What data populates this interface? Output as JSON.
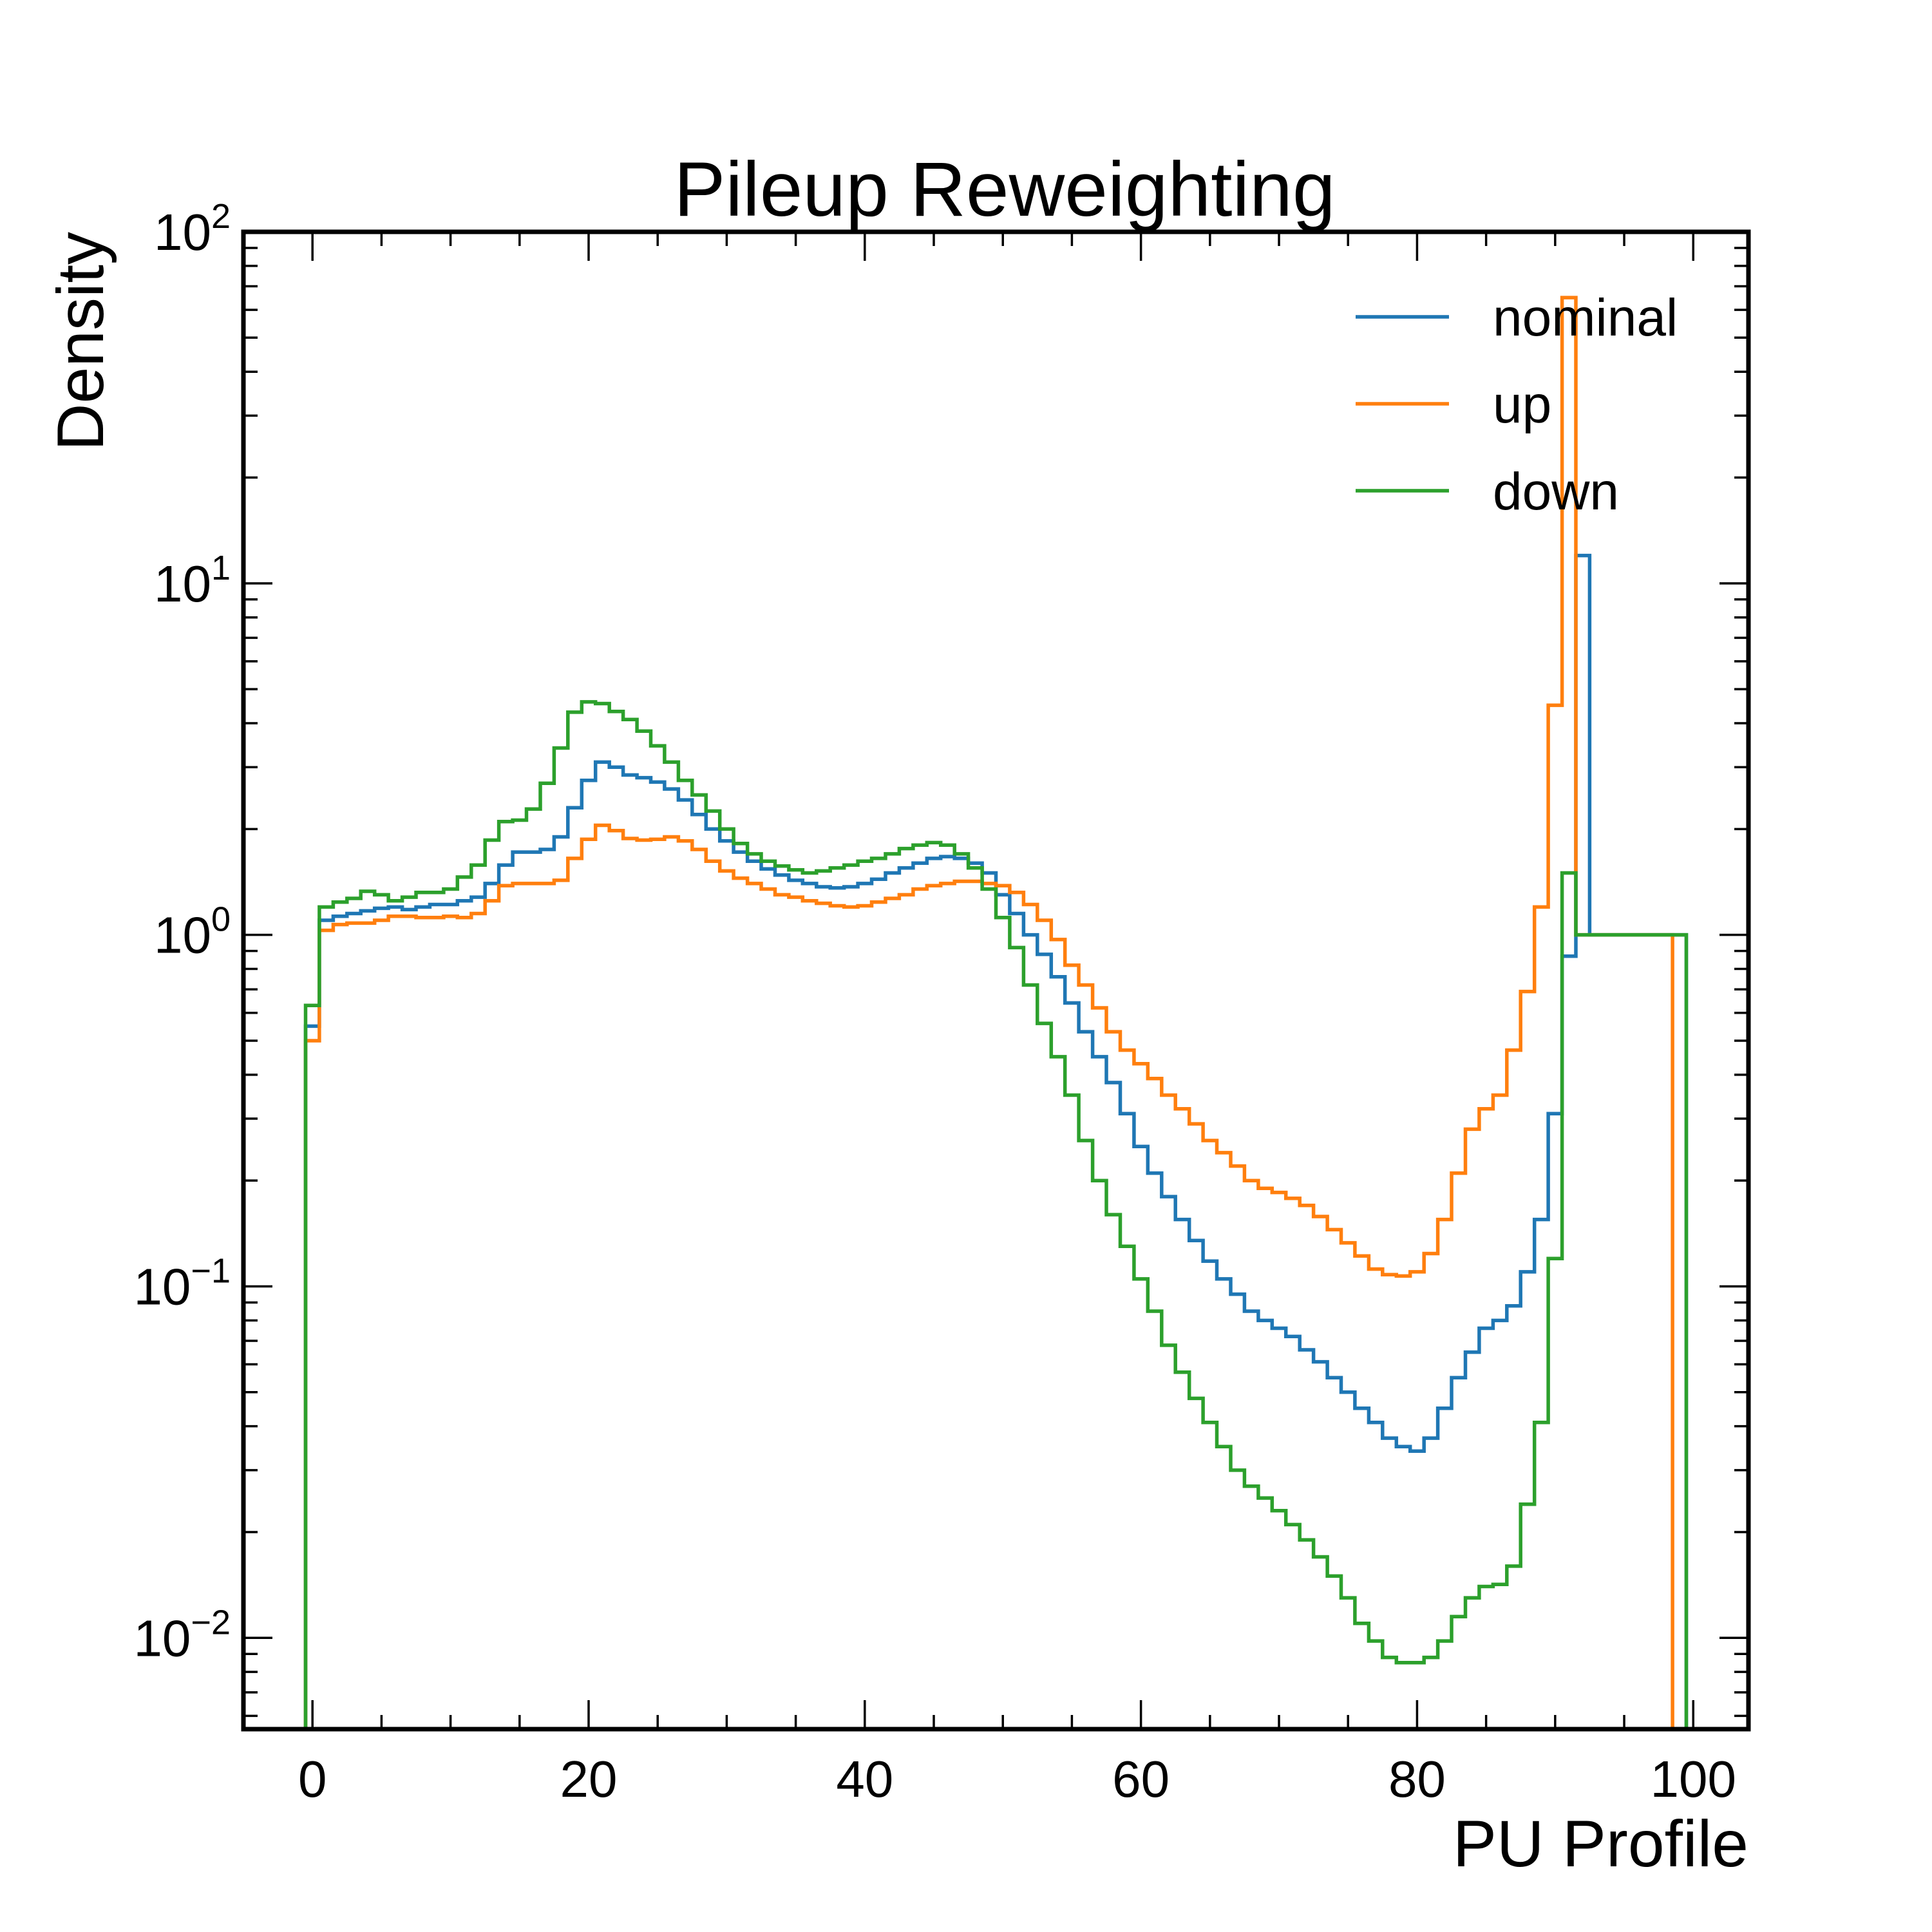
{
  "chart_data": {
    "type": "line",
    "style": "step-histogram",
    "title": "Pileup Reweighting",
    "xlabel": "PU Profile",
    "ylabel": "Density",
    "xlim": [
      -5,
      104
    ],
    "ylim": [
      0.0055,
      100
    ],
    "yscale": "log",
    "grid": false,
    "legend_position": "top-right",
    "bin_width": 1,
    "bin_start": -0.5,
    "x_ticks": [
      0,
      20,
      40,
      60,
      80,
      100
    ],
    "x_tick_labels": [
      "0",
      "20",
      "40",
      "60",
      "80",
      "100"
    ],
    "y_ticks": [
      {
        "value": 0.01,
        "base": "10",
        "exp": "−2"
      },
      {
        "value": 0.1,
        "base": "10",
        "exp": "−1"
      },
      {
        "value": 1,
        "base": "10",
        "exp": "0"
      },
      {
        "value": 10,
        "base": "10",
        "exp": "1"
      },
      {
        "value": 100,
        "base": "10",
        "exp": "2"
      }
    ],
    "series": [
      {
        "name": "nominal",
        "color": "#1f77b4",
        "values": [
          0.55,
          1.1,
          1.13,
          1.15,
          1.17,
          1.19,
          1.2,
          1.18,
          1.2,
          1.22,
          1.22,
          1.25,
          1.28,
          1.4,
          1.58,
          1.72,
          1.72,
          1.75,
          1.9,
          2.3,
          2.75,
          3.1,
          3.0,
          2.85,
          2.8,
          2.72,
          2.6,
          2.42,
          2.2,
          2.0,
          1.85,
          1.72,
          1.62,
          1.54,
          1.48,
          1.43,
          1.4,
          1.37,
          1.36,
          1.37,
          1.4,
          1.44,
          1.5,
          1.55,
          1.6,
          1.65,
          1.67,
          1.65,
          1.6,
          1.5,
          1.3,
          1.15,
          1.0,
          0.88,
          0.76,
          0.64,
          0.53,
          0.45,
          0.38,
          0.31,
          0.25,
          0.21,
          0.18,
          0.155,
          0.135,
          0.118,
          0.105,
          0.095,
          0.085,
          0.08,
          0.076,
          0.072,
          0.066,
          0.061,
          0.055,
          0.05,
          0.045,
          0.041,
          0.037,
          0.035,
          0.034,
          0.037,
          0.045,
          0.055,
          0.065,
          0.076,
          0.08,
          0.088,
          0.11,
          0.155,
          0.31,
          0.87,
          12.0,
          1.0,
          1.0,
          1.0,
          1.0,
          1.0,
          1.0,
          1.0
        ]
      },
      {
        "name": "up",
        "color": "#ff7f0e",
        "values": [
          0.5,
          1.03,
          1.07,
          1.08,
          1.08,
          1.1,
          1.13,
          1.13,
          1.12,
          1.12,
          1.13,
          1.12,
          1.15,
          1.25,
          1.38,
          1.4,
          1.4,
          1.4,
          1.43,
          1.65,
          1.87,
          2.05,
          1.98,
          1.88,
          1.86,
          1.87,
          1.9,
          1.85,
          1.75,
          1.62,
          1.52,
          1.45,
          1.4,
          1.35,
          1.3,
          1.28,
          1.25,
          1.23,
          1.21,
          1.2,
          1.21,
          1.24,
          1.27,
          1.3,
          1.35,
          1.38,
          1.4,
          1.42,
          1.42,
          1.4,
          1.38,
          1.32,
          1.22,
          1.1,
          0.97,
          0.82,
          0.72,
          0.62,
          0.53,
          0.47,
          0.43,
          0.39,
          0.35,
          0.32,
          0.29,
          0.26,
          0.24,
          0.22,
          0.2,
          0.19,
          0.185,
          0.178,
          0.17,
          0.158,
          0.145,
          0.133,
          0.122,
          0.112,
          0.108,
          0.107,
          0.11,
          0.124,
          0.155,
          0.21,
          0.28,
          0.32,
          0.35,
          0.47,
          0.69,
          1.2,
          4.5,
          65.0,
          1.0,
          1.0,
          1.0,
          1.0,
          1.0,
          1.0,
          1.0
        ]
      },
      {
        "name": "down",
        "color": "#2ca02c",
        "values": [
          0.63,
          1.2,
          1.24,
          1.27,
          1.33,
          1.3,
          1.25,
          1.28,
          1.32,
          1.32,
          1.35,
          1.46,
          1.58,
          1.86,
          2.1,
          2.12,
          2.28,
          2.7,
          3.4,
          4.3,
          4.6,
          4.55,
          4.32,
          4.1,
          3.8,
          3.45,
          3.1,
          2.75,
          2.5,
          2.25,
          2.0,
          1.82,
          1.7,
          1.62,
          1.57,
          1.53,
          1.5,
          1.52,
          1.55,
          1.58,
          1.62,
          1.65,
          1.7,
          1.76,
          1.8,
          1.83,
          1.8,
          1.7,
          1.55,
          1.35,
          1.12,
          0.92,
          0.72,
          0.56,
          0.45,
          0.35,
          0.26,
          0.2,
          0.16,
          0.13,
          0.105,
          0.085,
          0.068,
          0.057,
          0.048,
          0.041,
          0.035,
          0.03,
          0.027,
          0.025,
          0.023,
          0.021,
          0.019,
          0.017,
          0.015,
          0.013,
          0.011,
          0.0098,
          0.0088,
          0.0085,
          0.0085,
          0.0088,
          0.0098,
          0.0115,
          0.013,
          0.014,
          0.0142,
          0.016,
          0.024,
          0.041,
          0.12,
          1.5,
          1.0,
          1.0,
          1.0,
          1.0,
          1.0,
          1.0,
          1.0,
          1.0
        ]
      }
    ]
  }
}
